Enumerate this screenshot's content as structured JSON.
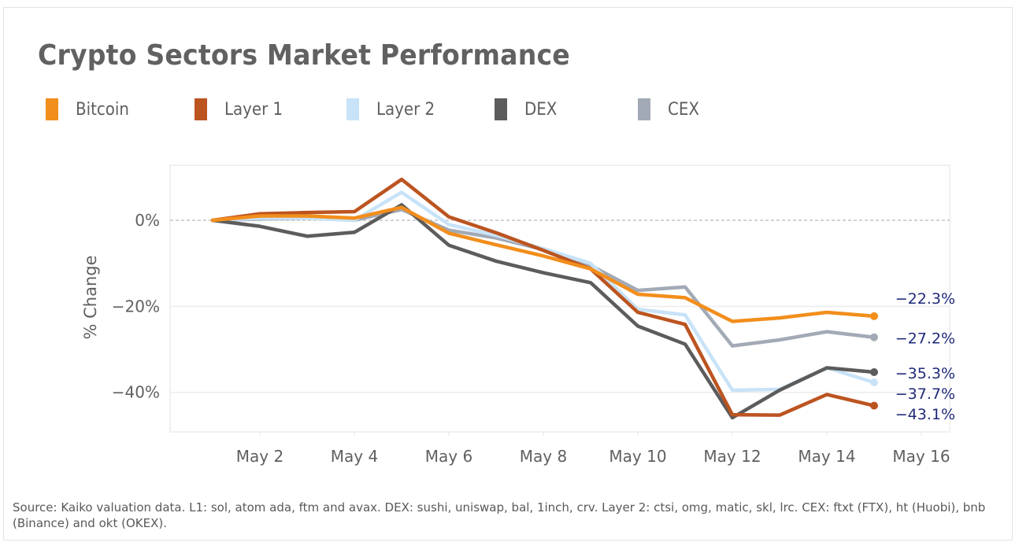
{
  "chart_data": {
    "type": "line",
    "title": "Crypto Sectors Market Performance",
    "xlabel": "",
    "ylabel": "% Change",
    "x": [
      "May 1",
      "May 2",
      "May 3",
      "May 4",
      "May 5",
      "May 6",
      "May 7",
      "May 8",
      "May 9",
      "May 10",
      "May 11",
      "May 12",
      "May 13",
      "May 14",
      "May 15"
    ],
    "x_day_numbers": [
      1,
      2,
      3,
      4,
      5,
      6,
      7,
      8,
      9,
      10,
      11,
      12,
      13,
      14,
      15
    ],
    "x_ticks": [
      {
        "day": 2,
        "label": "May 2"
      },
      {
        "day": 4,
        "label": "May 4"
      },
      {
        "day": 6,
        "label": "May 6"
      },
      {
        "day": 8,
        "label": "May 8"
      },
      {
        "day": 10,
        "label": "May 10"
      },
      {
        "day": 12,
        "label": "May 12"
      },
      {
        "day": 14,
        "label": "May 14"
      },
      {
        "day": 16,
        "label": "May 16"
      }
    ],
    "xlim": [
      0.1,
      16.6
    ],
    "y_ticks": [
      {
        "value": 0,
        "label": "0%"
      },
      {
        "value": -20,
        "label": "−20%"
      },
      {
        "value": -40,
        "label": "−40%"
      }
    ],
    "ylim": [
      -49.2,
      12.8
    ],
    "grid": "horizontal",
    "zero_line": "dashed",
    "legend_position": "top-left",
    "series": [
      {
        "name": "Bitcoin",
        "color": "#f28e1c",
        "values": [
          0,
          1.0,
          1.0,
          0.5,
          3.0,
          -3.0,
          -5.7,
          -8.3,
          -11.3,
          -17.2,
          -18.0,
          -23.5,
          -22.7,
          -21.4,
          -22.3
        ],
        "end_label": "−22.3%"
      },
      {
        "name": "Layer 1",
        "color": "#bc5420",
        "values": [
          0,
          1.5,
          1.8,
          2.0,
          9.5,
          0.8,
          -2.9,
          -7.0,
          -11.3,
          -21.4,
          -24.2,
          -45.2,
          -45.3,
          -40.5,
          -43.1
        ],
        "end_label": "−43.1%"
      },
      {
        "name": "Layer 2",
        "color": "#c8e3f8",
        "values": [
          0,
          0.5,
          0.5,
          0.0,
          6.5,
          -1.0,
          -3.5,
          -6.6,
          -10.0,
          -20.7,
          -22.0,
          -39.5,
          -39.3,
          -34.3,
          -37.7
        ],
        "end_label": "−37.7%"
      },
      {
        "name": "DEX",
        "color": "#5c5c5c",
        "values": [
          0,
          -1.4,
          -3.7,
          -2.8,
          3.6,
          -5.8,
          -9.5,
          -12.2,
          -14.5,
          -24.6,
          -28.8,
          -45.9,
          -39.5,
          -34.3,
          -35.3
        ],
        "end_label": "−35.3%"
      },
      {
        "name": "CEX",
        "color": "#a2aab6",
        "values": [
          0,
          0.3,
          0.5,
          0.0,
          2.5,
          -2.3,
          -4.1,
          -6.8,
          -10.5,
          -16.3,
          -15.5,
          -29.2,
          -27.8,
          -25.9,
          -27.2
        ],
        "end_label": "−27.2%"
      }
    ],
    "end_label_color": "#1f2a78",
    "source_note": "Source: Kaiko valuation data. L1: sol, atom ada, ftm and avax. DEX: sushi, uniswap, bal, 1inch, crv. Layer 2: ctsi, omg, matic, skl, lrc. CEX:  ftxt (FTX), ht (Huobi), bnb (Binance) and okt (OKEX)."
  }
}
